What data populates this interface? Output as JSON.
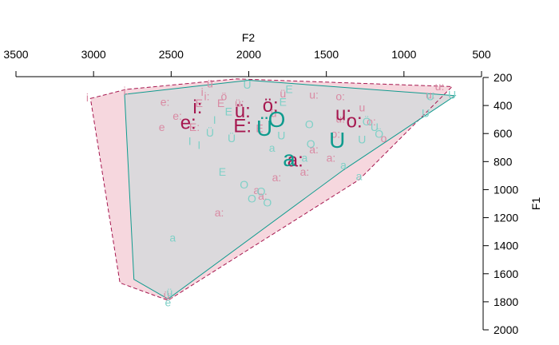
{
  "chart_data": {
    "type": "scatter",
    "title": "",
    "x_axis": {
      "label": "F2",
      "position": "top",
      "reversed": true,
      "range": [
        3500,
        500
      ],
      "ticks": [
        3500,
        3000,
        2500,
        2000,
        1500,
        1000,
        500
      ],
      "tick_labels": [
        "3500",
        "3000",
        "2500",
        "2000",
        "1500",
        "1000",
        "500"
      ]
    },
    "y_axis": {
      "label": "F1",
      "position": "right",
      "reversed": true,
      "range": [
        200,
        2000
      ],
      "ticks": [
        200,
        400,
        600,
        800,
        1000,
        1200,
        1400,
        1600,
        1800,
        2000
      ],
      "tick_labels": [
        "200",
        "400",
        "600",
        "800",
        "1000",
        "1200",
        "1400",
        "1600",
        "1800",
        "2000"
      ]
    },
    "grid": false,
    "legend": "none",
    "colors": {
      "group_a": "#a6174f",
      "group_a_light": "#d98aa3",
      "group_a_fill": "#f3c9d3",
      "group_b": "#0f9b8e",
      "group_b_light": "#7fd0c7",
      "overlap_fill": "#d9d9db"
    },
    "series": [
      {
        "group": "a",
        "hull": [
          [
            3020,
            350
          ],
          [
            2790,
            285
          ],
          [
            2080,
            210
          ],
          [
            690,
            265
          ],
          [
            1290,
            930
          ],
          [
            2520,
            1790
          ],
          [
            2830,
            1665
          ]
        ],
        "means": [
          {
            "label": "i:",
            "x": 2330,
            "y": 420
          },
          {
            "label": "e:",
            "x": 2390,
            "y": 530
          },
          {
            "label": "ü:",
            "x": 2040,
            "y": 450
          },
          {
            "label": "ö:",
            "x": 1860,
            "y": 410
          },
          {
            "label": "E:",
            "x": 2040,
            "y": 555
          },
          {
            "label": "u:",
            "x": 1390,
            "y": 470
          },
          {
            "label": "o:",
            "x": 1320,
            "y": 520
          },
          {
            "label": "a:",
            "x": 1700,
            "y": 800
          }
        ],
        "tokens": [
          {
            "label": "i:",
            "x": 2790,
            "y": 300
          },
          {
            "label": "i",
            "x": 3040,
            "y": 350
          },
          {
            "label": "i",
            "x": 2300,
            "y": 310
          },
          {
            "label": "i:",
            "x": 2270,
            "y": 340
          },
          {
            "label": "e:",
            "x": 2540,
            "y": 380
          },
          {
            "label": "e:",
            "x": 2460,
            "y": 480
          },
          {
            "label": "e",
            "x": 2560,
            "y": 560
          },
          {
            "label": "ü",
            "x": 2250,
            "y": 250
          },
          {
            "label": "ü:",
            "x": 2060,
            "y": 390
          },
          {
            "label": "ö",
            "x": 2160,
            "y": 340
          },
          {
            "label": "E",
            "x": 2180,
            "y": 390
          },
          {
            "label": "E:",
            "x": 2350,
            "y": 560
          },
          {
            "label": "E",
            "x": 1930,
            "y": 570
          },
          {
            "label": "o:",
            "x": 1410,
            "y": 340
          },
          {
            "label": "o:",
            "x": 1210,
            "y": 520
          },
          {
            "label": "u:",
            "x": 1580,
            "y": 330
          },
          {
            "label": "u:",
            "x": 1410,
            "y": 500
          },
          {
            "label": "u",
            "x": 1270,
            "y": 420
          },
          {
            "label": "a:",
            "x": 1640,
            "y": 880
          },
          {
            "label": "a:",
            "x": 1820,
            "y": 920
          },
          {
            "label": "a:",
            "x": 1910,
            "y": 1050
          },
          {
            "label": "a:",
            "x": 1580,
            "y": 720
          },
          {
            "label": "a:",
            "x": 2190,
            "y": 1170
          },
          {
            "label": "a",
            "x": 1950,
            "y": 1010
          },
          {
            "label": "ü",
            "x": 1780,
            "y": 320
          },
          {
            "label": "ü:",
            "x": 2520,
            "y": 1760
          },
          {
            "label": "o:",
            "x": 1440,
            "y": 610
          },
          {
            "label": "u:",
            "x": 830,
            "y": 330
          },
          {
            "label": "u:",
            "x": 770,
            "y": 270
          },
          {
            "label": "E",
            "x": 2320,
            "y": 390
          },
          {
            "label": "ü",
            "x": 1840,
            "y": 460
          },
          {
            "label": "a:",
            "x": 1470,
            "y": 780
          },
          {
            "label": "o",
            "x": 1130,
            "y": 640
          }
        ]
      },
      {
        "group": "b",
        "hull": [
          [
            2800,
            320
          ],
          [
            2000,
            220
          ],
          [
            670,
            330
          ],
          [
            1390,
            860
          ],
          [
            2520,
            1780
          ],
          [
            2740,
            1640
          ]
        ],
        "means": [
          {
            "label": "O",
            "x": 1820,
            "y": 510
          },
          {
            "label": "Ü",
            "x": 1900,
            "y": 575
          },
          {
            "label": "U",
            "x": 1430,
            "y": 660
          },
          {
            "label": "a",
            "x": 1740,
            "y": 790
          }
        ],
        "tokens": [
          {
            "label": "I",
            "x": 2220,
            "y": 510
          },
          {
            "label": "I",
            "x": 2320,
            "y": 690
          },
          {
            "label": "Ü",
            "x": 2250,
            "y": 600
          },
          {
            "label": "Ü",
            "x": 2110,
            "y": 640
          },
          {
            "label": "Ü",
            "x": 2010,
            "y": 260
          },
          {
            "label": "E",
            "x": 2170,
            "y": 880
          },
          {
            "label": "E",
            "x": 2130,
            "y": 450
          },
          {
            "label": "E",
            "x": 1740,
            "y": 290
          },
          {
            "label": "E",
            "x": 1780,
            "y": 380
          },
          {
            "label": "O",
            "x": 2030,
            "y": 970
          },
          {
            "label": "O",
            "x": 1980,
            "y": 1070
          },
          {
            "label": "O",
            "x": 1920,
            "y": 1020
          },
          {
            "label": "O",
            "x": 1610,
            "y": 540
          },
          {
            "label": "O",
            "x": 1600,
            "y": 680
          },
          {
            "label": "U",
            "x": 1790,
            "y": 620
          },
          {
            "label": "U",
            "x": 1270,
            "y": 650
          },
          {
            "label": "U",
            "x": 1190,
            "y": 560
          },
          {
            "label": "Ö",
            "x": 1160,
            "y": 610
          },
          {
            "label": "Ö",
            "x": 1240,
            "y": 520
          },
          {
            "label": "U",
            "x": 830,
            "y": 340
          },
          {
            "label": "U",
            "x": 690,
            "y": 330
          },
          {
            "label": "U",
            "x": 860,
            "y": 460
          },
          {
            "label": "a",
            "x": 1290,
            "y": 910
          },
          {
            "label": "a",
            "x": 2490,
            "y": 1350
          },
          {
            "label": "a",
            "x": 1850,
            "y": 710
          },
          {
            "label": "a",
            "x": 1640,
            "y": 780
          },
          {
            "label": "e",
            "x": 2520,
            "y": 1810
          },
          {
            "label": "ü",
            "x": 2510,
            "y": 1740
          },
          {
            "label": "O",
            "x": 1880,
            "y": 1100
          },
          {
            "label": "I",
            "x": 2380,
            "y": 660
          },
          {
            "label": "a",
            "x": 1390,
            "y": 830
          }
        ]
      }
    ]
  }
}
